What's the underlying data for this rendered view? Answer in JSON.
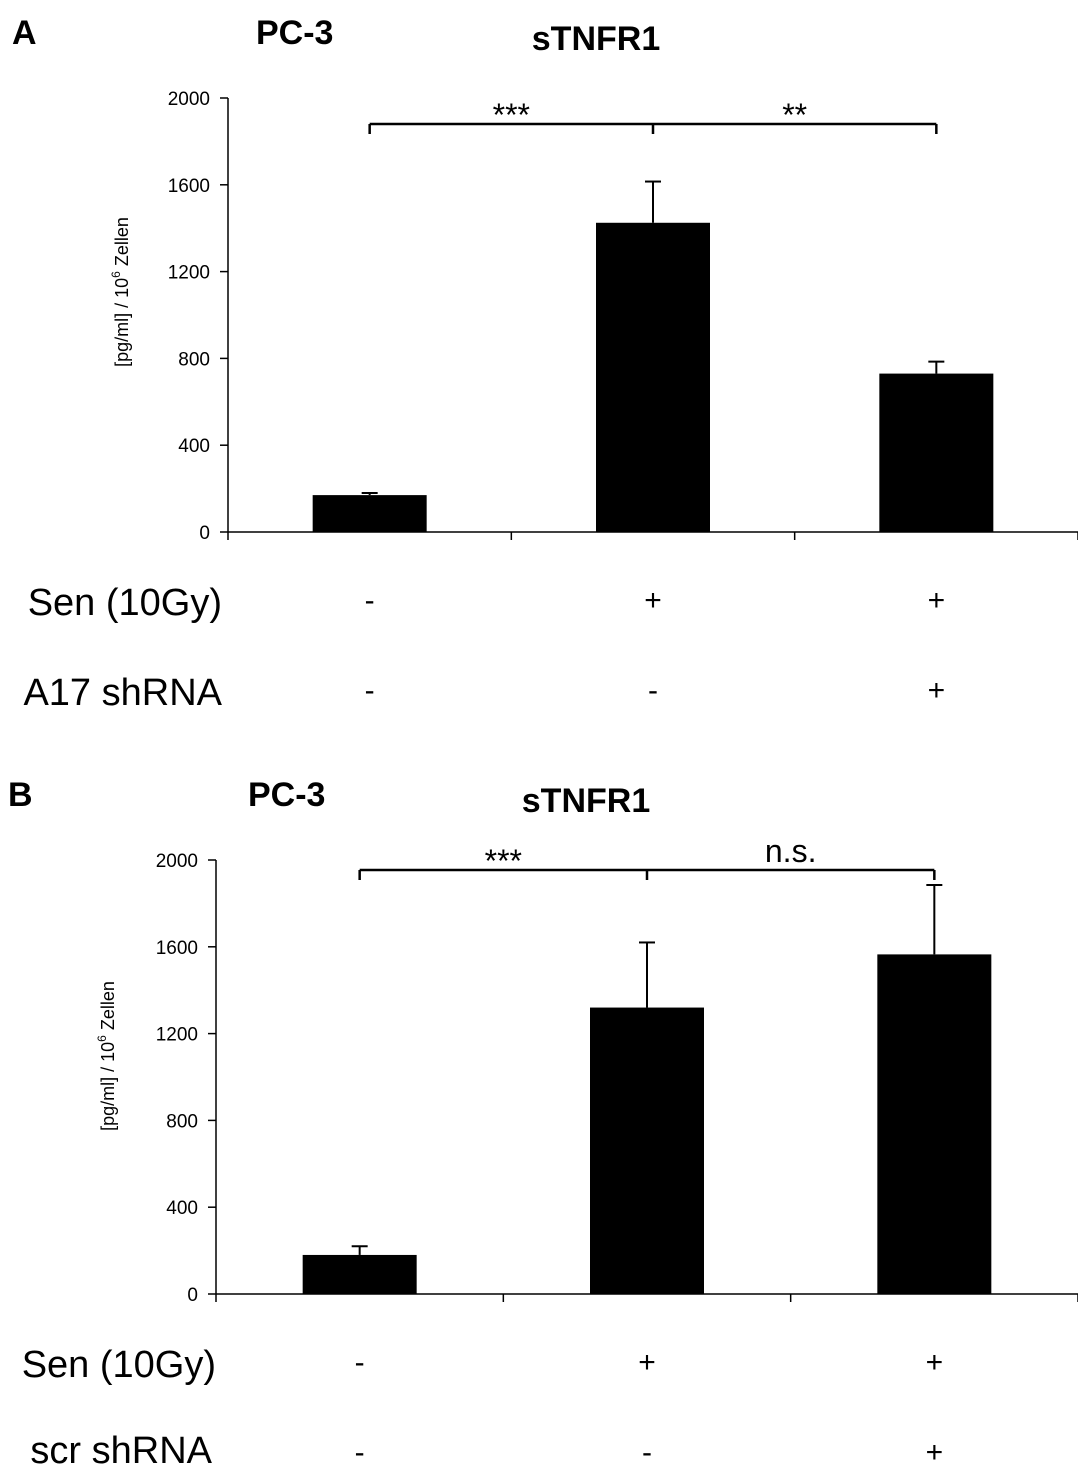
{
  "colors": {
    "bar": "#000000",
    "axis": "#000000",
    "background": "#ffffff"
  },
  "chart_data": [
    {
      "type": "bar",
      "panel": "A",
      "cell_line": "PC-3",
      "title": "sTNFR1",
      "ylabel_main": "[pg/ml] / 10",
      "ylabel_sup": "6",
      "ylabel_tail": " Zellen",
      "xlabel": "",
      "ylim": [
        0,
        2000
      ],
      "yticks": [
        "0",
        "400",
        "800",
        "1200",
        "1600",
        "2000"
      ],
      "series": [
        {
          "values": [
            170,
            1425,
            730
          ],
          "errors": [
            10,
            190,
            55
          ]
        }
      ],
      "significance": [
        {
          "from": 0,
          "to": 1,
          "label": "***"
        },
        {
          "from": 1,
          "to": 2,
          "label": "**"
        }
      ],
      "conditions": [
        {
          "label": "Sen (10Gy)",
          "marks": [
            "-",
            "+",
            "+"
          ]
        },
        {
          "label": "A17 shRNA",
          "marks": [
            "-",
            "-",
            "+"
          ]
        }
      ]
    },
    {
      "type": "bar",
      "panel": "B",
      "cell_line": "PC-3",
      "title": "sTNFR1",
      "ylabel_main": "[pg/ml] / 10",
      "ylabel_sup": "6",
      "ylabel_tail": " Zellen",
      "xlabel": "",
      "ylim": [
        0,
        2000
      ],
      "yticks": [
        "0",
        "400",
        "800",
        "1200",
        "1600",
        "2000"
      ],
      "series": [
        {
          "values": [
            180,
            1320,
            1565
          ],
          "errors": [
            40,
            300,
            320
          ]
        }
      ],
      "significance": [
        {
          "from": 0,
          "to": 1,
          "label": "***"
        },
        {
          "from": 1,
          "to": 2,
          "label": "n.s."
        }
      ],
      "conditions": [
        {
          "label": "Sen (10Gy)",
          "marks": [
            "-",
            "+",
            "+"
          ]
        },
        {
          "label": "scr shRNA",
          "marks": [
            "-",
            "-",
            "+"
          ]
        }
      ]
    }
  ]
}
